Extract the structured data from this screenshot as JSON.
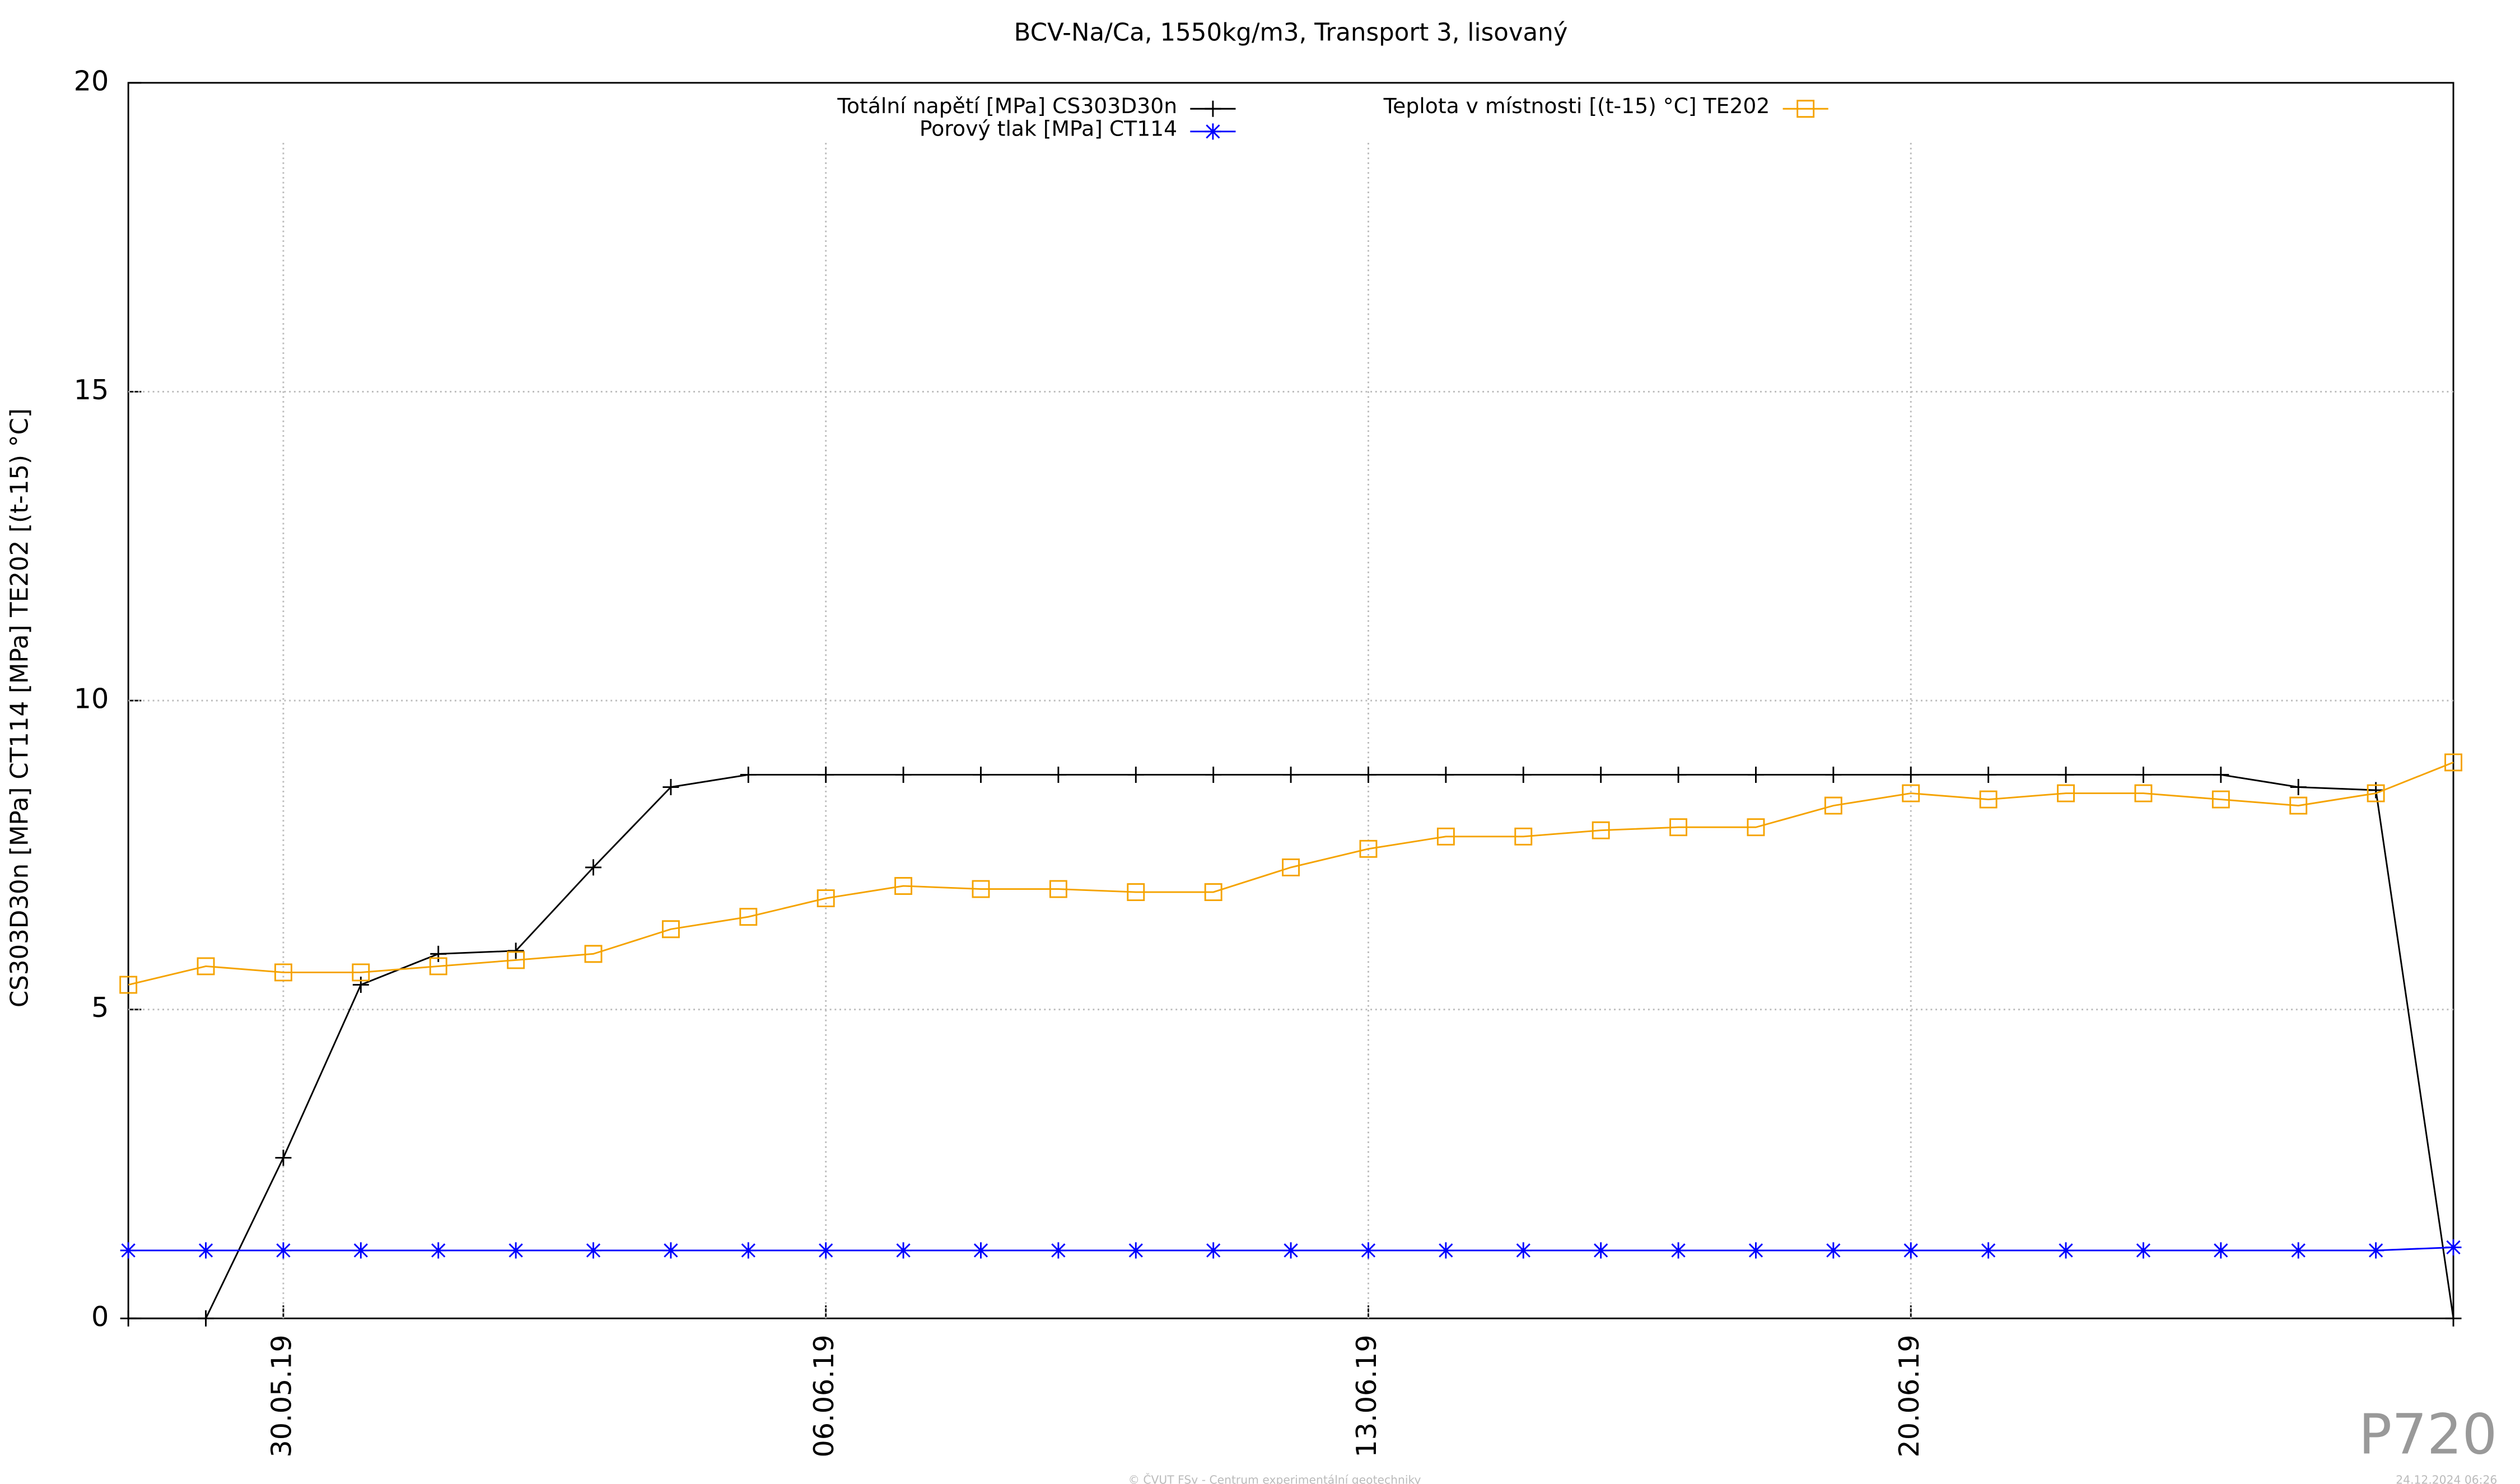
{
  "chart_data": {
    "type": "line",
    "title": "BCV-Na/Ca, 1550kg/m3, Transport 3, lisovaný",
    "y_label": "CS303D30n [MPa] CT114 [MPa] TE202 [(t-15) °C]",
    "x": [
      "2019-05-28",
      "2019-05-29",
      "2019-05-30",
      "2019-05-31",
      "2019-06-01",
      "2019-06-02",
      "2019-06-03",
      "2019-06-04",
      "2019-06-05",
      "2019-06-06",
      "2019-06-07",
      "2019-06-08",
      "2019-06-09",
      "2019-06-10",
      "2019-06-11",
      "2019-06-12",
      "2019-06-13",
      "2019-06-14",
      "2019-06-15",
      "2019-06-16",
      "2019-06-17",
      "2019-06-18",
      "2019-06-19",
      "2019-06-20",
      "2019-06-21",
      "2019-06-22",
      "2019-06-23",
      "2019-06-24",
      "2019-06-25",
      "2019-06-26",
      "2019-06-27"
    ],
    "xlim": [
      "2019-05-28",
      "2019-06-27"
    ],
    "xticks": [
      {
        "value": "2019-05-30",
        "label": "30.05.19"
      },
      {
        "value": "2019-06-06",
        "label": "06.06.19"
      },
      {
        "value": "2019-06-13",
        "label": "13.06.19"
      },
      {
        "value": "2019-06-20",
        "label": "20.06.19"
      }
    ],
    "ylim": [
      0,
      20
    ],
    "yticks": [
      0,
      5,
      10,
      15,
      20
    ],
    "grid": true,
    "legend": "top",
    "series": [
      {
        "name": "Totální napětí [MPa] CS303D30n",
        "color": "#000000",
        "marker": "plus",
        "values": [
          0,
          0,
          2.6,
          5.4,
          5.9,
          5.95,
          7.3,
          8.6,
          8.8,
          8.8,
          8.8,
          8.8,
          8.8,
          8.8,
          8.8,
          8.8,
          8.8,
          8.8,
          8.8,
          8.8,
          8.8,
          8.8,
          8.8,
          8.8,
          8.8,
          8.8,
          8.8,
          8.8,
          8.6,
          8.55,
          0
        ]
      },
      {
        "name": "Porový tlak [MPa] CT114",
        "color": "#0000ff",
        "marker": "star",
        "values": [
          1.1,
          1.1,
          1.1,
          1.1,
          1.1,
          1.1,
          1.1,
          1.1,
          1.1,
          1.1,
          1.1,
          1.1,
          1.1,
          1.1,
          1.1,
          1.1,
          1.1,
          1.1,
          1.1,
          1.1,
          1.1,
          1.1,
          1.1,
          1.1,
          1.1,
          1.1,
          1.1,
          1.1,
          1.1,
          1.1,
          1.15
        ]
      },
      {
        "name": "Teplota v místnosti [(t-15) °C] TE202",
        "color": "#f5a300",
        "marker": "square",
        "values": [
          5.4,
          5.7,
          5.6,
          5.6,
          5.7,
          5.8,
          5.9,
          6.3,
          6.5,
          6.8,
          7.0,
          6.95,
          6.95,
          6.9,
          6.9,
          7.3,
          7.6,
          7.8,
          7.8,
          7.9,
          7.95,
          7.95,
          8.3,
          8.5,
          8.4,
          8.5,
          8.5,
          8.4,
          8.3,
          8.5,
          9.0
        ]
      }
    ],
    "watermark": "P720",
    "footer": "© ČVUT FSv - Centrum experimentální geotechniky",
    "timestamp": "24.12.2024 06:26"
  }
}
